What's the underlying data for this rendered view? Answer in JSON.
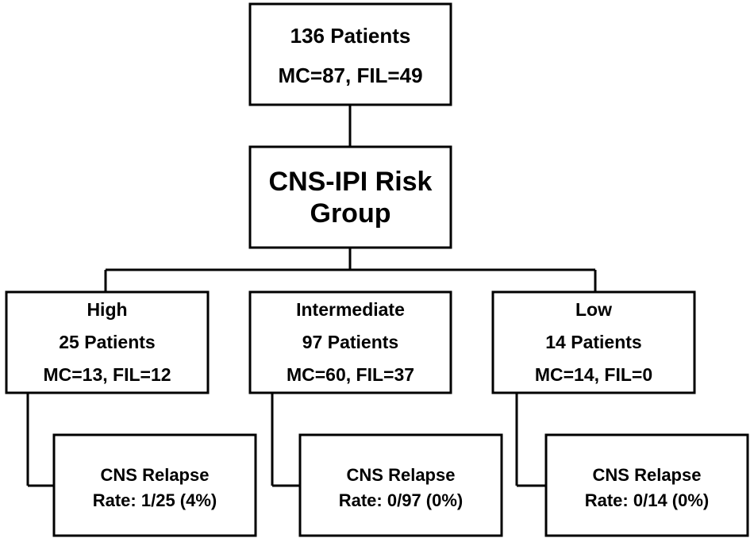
{
  "nodes": [
    {
      "lines": [
        "136 Patients",
        "MC=87, FIL=49"
      ]
    },
    {
      "lines": [
        "CNS-IPI Risk",
        "Group"
      ]
    },
    {
      "lines": [
        "High",
        "25 Patients",
        "MC=13, FIL=12"
      ]
    },
    {
      "lines": [
        "Intermediate",
        "97 Patients",
        "MC=60, FIL=37"
      ]
    },
    {
      "lines": [
        "Low",
        "14 Patients",
        "MC=14, FIL=0"
      ]
    },
    {
      "lines": [
        "CNS Relapse",
        "Rate: 1/25 (4%)"
      ]
    },
    {
      "lines": [
        "CNS Relapse",
        "Rate: 0/97 (0%)"
      ]
    },
    {
      "lines": [
        "CNS Relapse",
        "Rate: 0/14 (0%)"
      ]
    }
  ]
}
